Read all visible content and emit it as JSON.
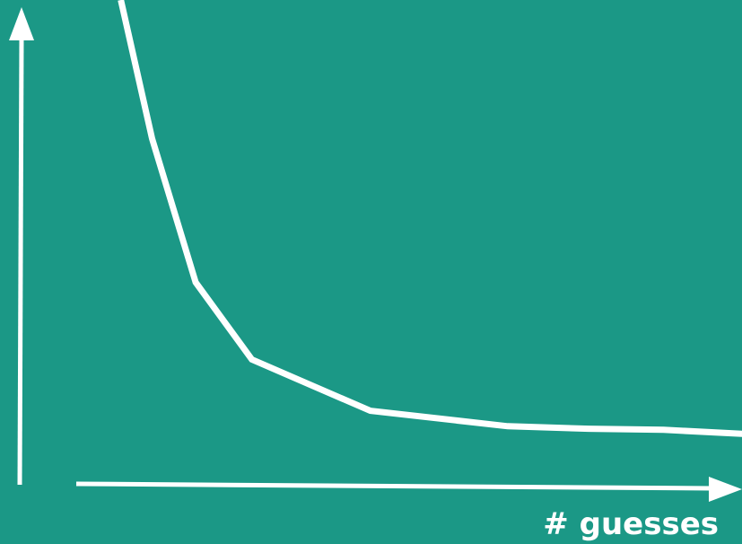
{
  "colors": {
    "background": "#1b9886",
    "foreground": "#ffffff"
  },
  "chart_data": {
    "type": "line",
    "title": "",
    "xlabel": "# guesses",
    "ylabel": "",
    "grid": false,
    "legend": "none",
    "series": [
      {
        "values_description_omitted": true,
        "x": [
          0.0,
          0.25,
          0.6,
          1.05,
          2.0,
          3.1,
          3.75,
          4.35,
          5.0
        ],
        "y": [
          1.0,
          0.73,
          0.45,
          0.3,
          0.2,
          0.17,
          0.165,
          0.163,
          0.155
        ]
      }
    ],
    "xlim": [
      -0.12,
      5.0
    ],
    "ylim": [
      0.056,
      1.0
    ]
  }
}
